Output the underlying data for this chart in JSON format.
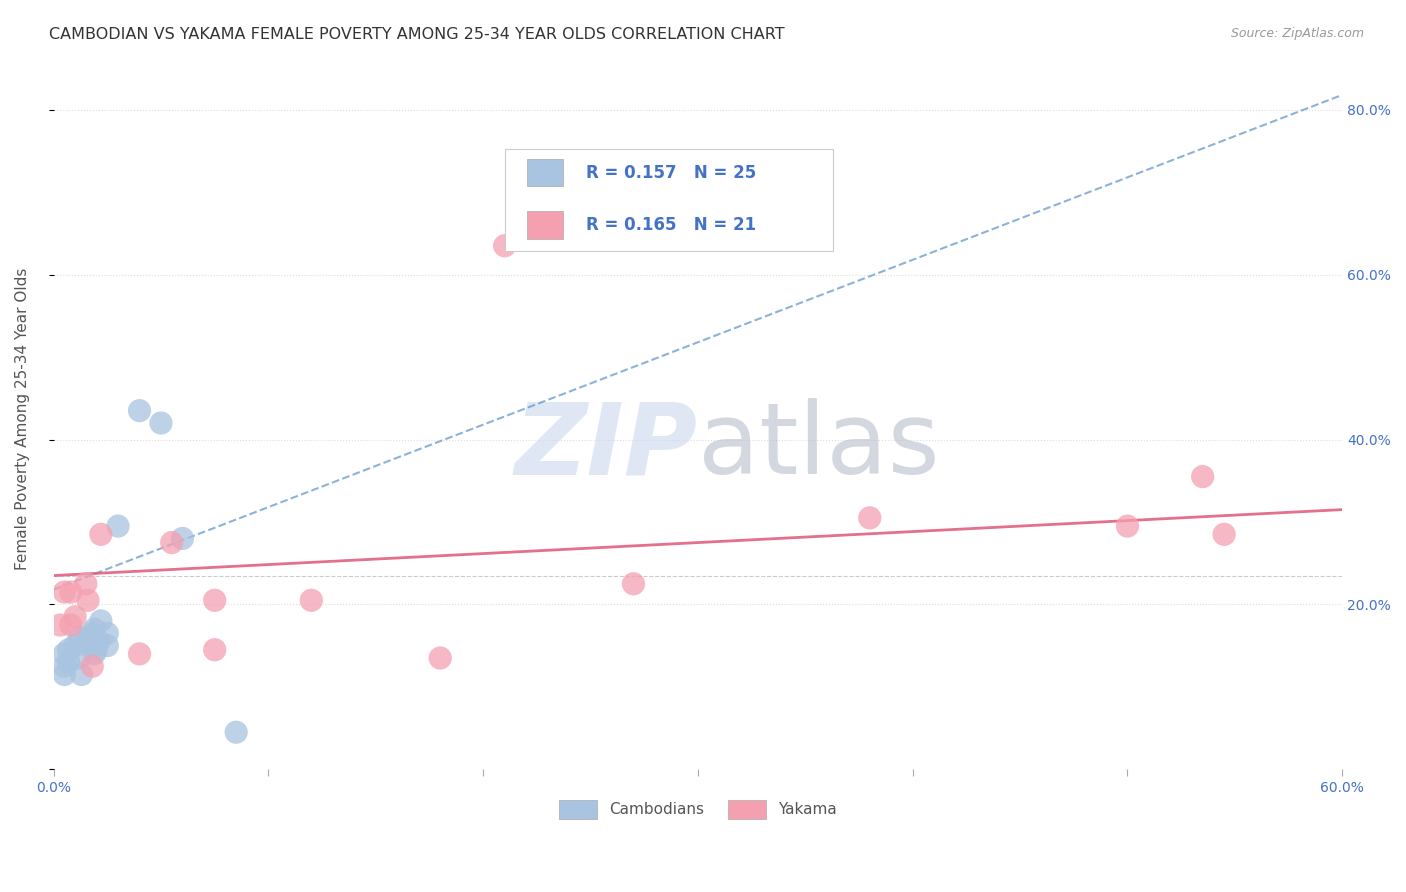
{
  "title": "CAMBODIAN VS YAKAMA FEMALE POVERTY AMONG 25-34 YEAR OLDS CORRELATION CHART",
  "source": "Source: ZipAtlas.com",
  "ylabel": "Female Poverty Among 25-34 Year Olds",
  "xlim": [
    0.0,
    0.6
  ],
  "ylim": [
    0.0,
    0.85
  ],
  "right_ytick_labels": [
    "",
    "20.0%",
    "40.0%",
    "60.0%",
    "80.0%"
  ],
  "cambodian_color": "#a8c4e0",
  "yakama_color": "#f4a0b0",
  "cambodian_line_color": "#6699cc",
  "yakama_line_color": "#e06080",
  "cambodian_R": "0.157",
  "cambodian_N": "25",
  "yakama_R": "0.165",
  "yakama_N": "21",
  "legend_color": "#4472c4",
  "legend_N_color": "#333333",
  "watermark_zip_color": "#c8d8ec",
  "watermark_atlas_color": "#b0b8c8",
  "background_color": "#ffffff",
  "grid_color": "#dddddd",
  "tick_color": "#4472c4",
  "title_fontsize": 11.5,
  "tick_fontsize": 10,
  "ylabel_fontsize": 11,
  "cambodian_x": [
    0.005,
    0.005,
    0.005,
    0.007,
    0.007,
    0.01,
    0.012,
    0.012,
    0.013,
    0.015,
    0.016,
    0.018,
    0.018,
    0.019,
    0.019,
    0.02,
    0.021,
    0.022,
    0.025,
    0.025,
    0.03,
    0.04,
    0.05,
    0.06,
    0.085
  ],
  "cambodian_y": [
    0.115,
    0.125,
    0.14,
    0.13,
    0.145,
    0.15,
    0.135,
    0.16,
    0.115,
    0.155,
    0.16,
    0.15,
    0.165,
    0.14,
    0.17,
    0.145,
    0.155,
    0.18,
    0.15,
    0.165,
    0.295,
    0.435,
    0.42,
    0.28,
    0.045
  ],
  "yakama_x": [
    0.003,
    0.005,
    0.008,
    0.008,
    0.01,
    0.015,
    0.016,
    0.018,
    0.022,
    0.04,
    0.055,
    0.075,
    0.075,
    0.12,
    0.18,
    0.21,
    0.27,
    0.38,
    0.5,
    0.535,
    0.545
  ],
  "yakama_y": [
    0.175,
    0.215,
    0.175,
    0.215,
    0.185,
    0.225,
    0.205,
    0.125,
    0.285,
    0.14,
    0.275,
    0.205,
    0.145,
    0.205,
    0.135,
    0.635,
    0.225,
    0.305,
    0.295,
    0.355,
    0.285
  ],
  "cam_line_x": [
    0.0,
    0.6
  ],
  "cam_line_y": [
    0.218,
    0.818
  ],
  "yak_line_x": [
    0.0,
    0.6
  ],
  "yak_line_y": [
    0.235,
    0.315
  ],
  "hline_y": 0.235
}
